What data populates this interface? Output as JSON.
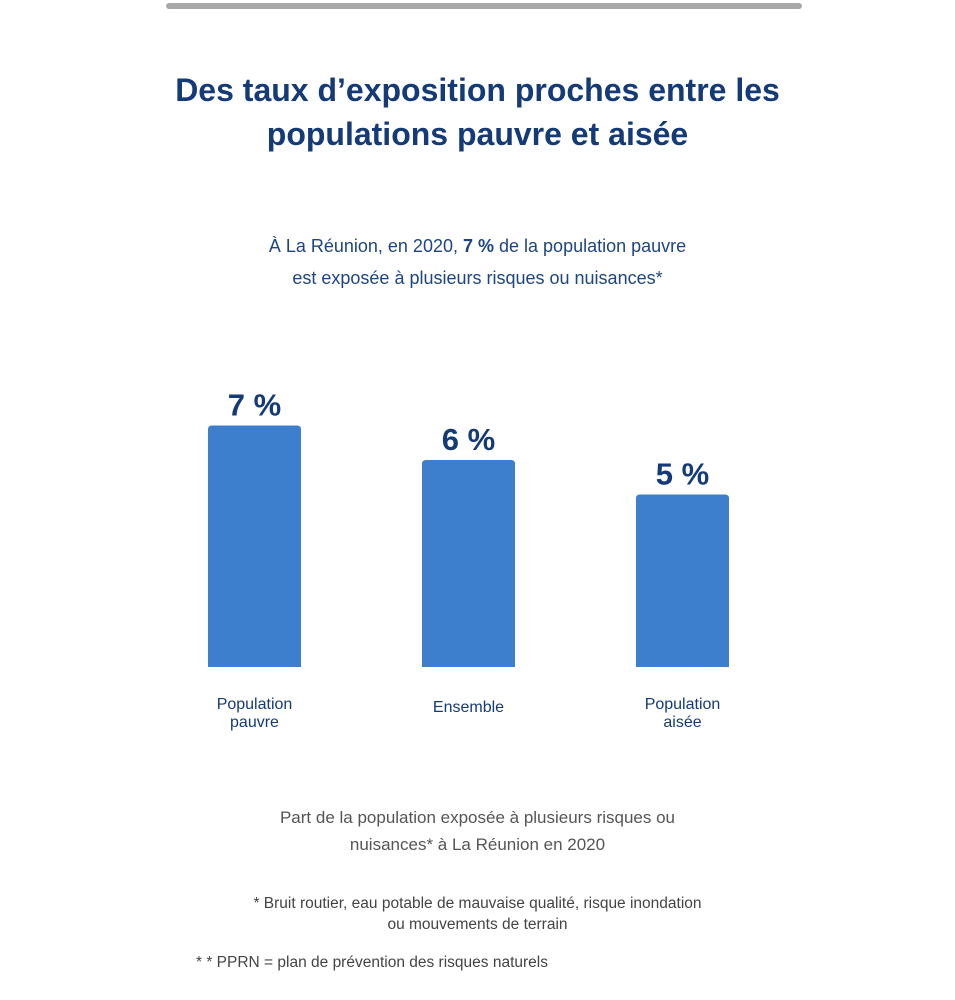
{
  "title_lines": [
    "Des taux d’exposition proches entre les",
    "populations pauvre et aisée"
  ],
  "subtitle": {
    "part1": "À La Réunion, en 2020, ",
    "bold": "7 %",
    "part2": " de la population pauvre",
    "line2": "est exposée à plusieurs risques ou nuisances*"
  },
  "chart_data": {
    "type": "bar",
    "categories": [
      [
        "Population",
        "pauvre"
      ],
      [
        "Ensemble"
      ],
      [
        "Population",
        "aisée"
      ]
    ],
    "values": [
      7,
      6,
      5
    ],
    "data_labels": [
      "7 %",
      "6 %",
      "5 %"
    ],
    "unit": "%",
    "title": "Des taux d’exposition proches entre les populations pauvre et aisée",
    "xlabel": "",
    "ylabel": "",
    "ylim": [
      0,
      7
    ],
    "grid": false,
    "bar_color": "#3d7fcc",
    "label_color": "#143a78"
  },
  "caption_lines": [
    "Part de la population exposée à plusieurs risques ou",
    "nuisances* à La Réunion en 2020"
  ],
  "notes": {
    "note1_lines": [
      "* Bruit routier, eau potable de mauvaise qualité, risque inondation",
      "ou mouvements de terrain"
    ],
    "note2": "* * PPRN = plan de prévention des risques naturels"
  }
}
